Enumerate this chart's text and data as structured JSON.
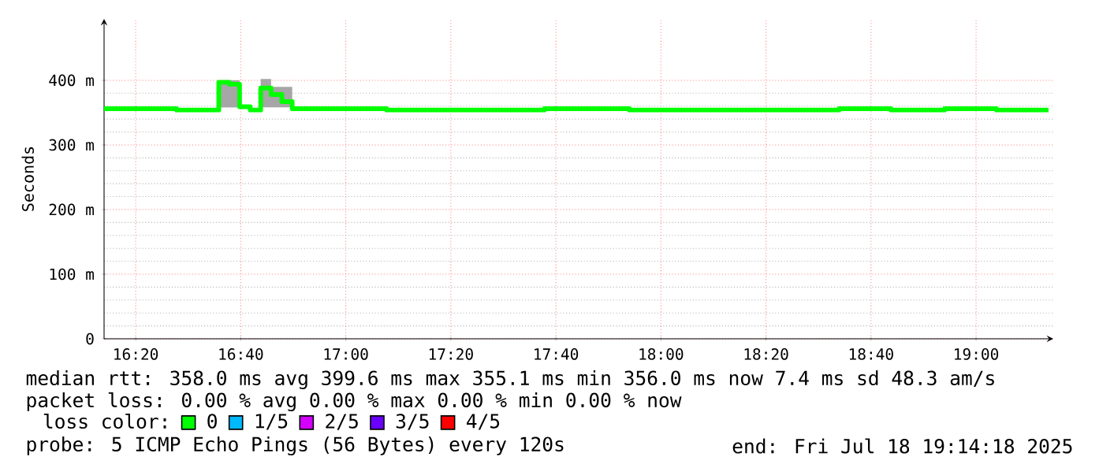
{
  "chart_data": {
    "type": "step",
    "ylabel": "Seconds",
    "legend_title": "loss color:",
    "legend": "bottom",
    "grid": true,
    "xlim": [
      16.233,
      19.245
    ],
    "xticks": [
      {
        "value": 16.3333,
        "label": "16:20"
      },
      {
        "value": 16.6667,
        "label": "16:40"
      },
      {
        "value": 17,
        "label": "17:00"
      },
      {
        "value": 17.3333,
        "label": "17:20"
      },
      {
        "value": 17.6667,
        "label": "17:40"
      },
      {
        "value": 18,
        "label": "18:00"
      },
      {
        "value": 18.3333,
        "label": "18:20"
      },
      {
        "value": 18.6667,
        "label": "18:40"
      },
      {
        "value": 19,
        "label": "19:00"
      }
    ],
    "ylim": [
      0,
      495
    ],
    "yticks": [
      0,
      {
        "value": 100,
        "label": "100 m"
      },
      {
        "value": 200,
        "label": "200 m"
      },
      {
        "value": 300,
        "label": "300 m"
      },
      {
        "value": 400,
        "label": "400 m"
      }
    ],
    "x": [
      16.233,
      16.463,
      16.597,
      16.63,
      16.663,
      16.697,
      16.73,
      16.763,
      16.797,
      16.83,
      17.13,
      17.63,
      17.9,
      18.565,
      18.73,
      18.9,
      19.065,
      19.23
    ],
    "series": [
      {
        "name": "0",
        "color": "#00ff00",
        "values": [
          356,
          354,
          397,
          394,
          359,
          354,
          388,
          378,
          367,
          356,
          354,
          356,
          354,
          356,
          354,
          356,
          354,
          354
        ],
        "lower": [
          null,
          null,
          358,
          358,
          358,
          null,
          358,
          358,
          358,
          358,
          null,
          null,
          null,
          null,
          null,
          null,
          null,
          null
        ],
        "upper": [
          null,
          null,
          400,
          400,
          400,
          null,
          402,
          390,
          390,
          390,
          null,
          null,
          null,
          null,
          null,
          null,
          null,
          null
        ]
      },
      {
        "name": "1/5",
        "color": "#00b8ff",
        "values": [
          null,
          null,
          null,
          null,
          null,
          null,
          null,
          null,
          null,
          null,
          null,
          null,
          null,
          null,
          null,
          null,
          null,
          null
        ]
      },
      {
        "name": "2/5",
        "color": "#d400ff",
        "values": [
          null,
          null,
          null,
          null,
          null,
          null,
          null,
          null,
          null,
          null,
          null,
          null,
          null,
          null,
          null,
          null,
          null,
          null
        ]
      },
      {
        "name": "3/5",
        "color": "#6a00ff",
        "values": [
          null,
          null,
          null,
          null,
          null,
          null,
          null,
          null,
          null,
          null,
          null,
          null,
          null,
          null,
          null,
          null,
          null,
          null
        ]
      },
      {
        "name": "4/5",
        "color": "#ff0000",
        "values": [
          null,
          null,
          null,
          null,
          null,
          null,
          null,
          null,
          null,
          null,
          null,
          null,
          null,
          null,
          null,
          null,
          null,
          null
        ]
      }
    ],
    "annotations": [
      "median rtt:  358.0 ms avg  399.6 ms max  355.1 ms min  356.0 ms now  7.4 ms sd  48.3   am/s",
      "packet loss: 0.00 % avg  0.00 % max  0.00 % min  0.00 % now",
      "probe:       5 ICMP Echo Pings (56 Bytes) every 120s",
      "end: Fri Jul 18 19:14:18 2025"
    ]
  }
}
